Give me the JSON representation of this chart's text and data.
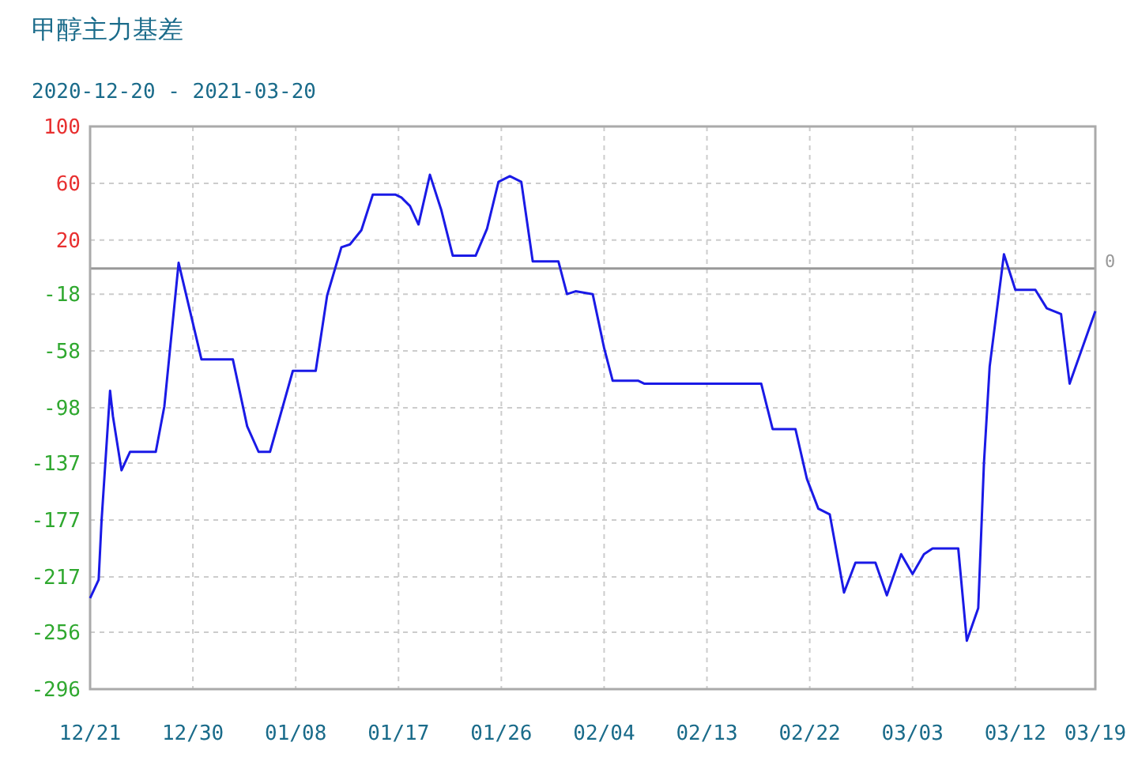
{
  "chart_data": {
    "type": "line",
    "title": "甲醇主力基差",
    "subtitle": "2020-12-20 - 2021-03-20",
    "x": [
      "2020-12-21",
      "2020-12-21T18:00",
      "2020-12-22",
      "2020-12-22T18:00",
      "2020-12-23",
      "2020-12-23T18:00",
      "2020-12-24T12:00",
      "2020-12-26T18:00",
      "2020-12-27T12:00",
      "2020-12-28T18:00",
      "2020-12-30T18:00",
      "2021-01-02T12:00",
      "2021-01-03T18:00",
      "2021-01-04T18:00",
      "2021-01-05T18:00",
      "2021-01-07T18:00",
      "2021-01-09T18:00",
      "2021-01-10T18:00",
      "2021-01-12",
      "2021-01-12T18:00",
      "2021-01-13T18:00",
      "2021-01-14T18:00",
      "2021-01-16T18:00",
      "2021-01-17T06:00",
      "2021-01-18",
      "2021-01-18T18:00",
      "2021-01-19T18:00",
      "2021-01-20T18:00",
      "2021-01-21T18:00",
      "2021-01-23T18:00",
      "2021-01-24T18:00",
      "2021-01-25T18:00",
      "2021-01-26T18:00",
      "2021-01-27T18:00",
      "2021-01-28T18:00",
      "2021-01-31",
      "2021-01-31T18:00",
      "2021-02-01T12:00",
      "2021-02-03",
      "2021-02-04",
      "2021-02-04T18:00",
      "2021-02-07",
      "2021-02-07T12:00",
      "2021-02-17T18:00",
      "2021-02-18T18:00",
      "2021-02-20T18:00",
      "2021-02-21T18:00",
      "2021-02-22T18:00",
      "2021-02-23T18:00",
      "2021-02-25",
      "2021-02-26",
      "2021-02-27T18:00",
      "2021-02-28T18:00",
      "2021-03-02",
      "2021-03-03",
      "2021-03-04",
      "2021-03-04T18:00",
      "2021-03-07",
      "2021-03-07T18:00",
      "2021-03-08T18:00",
      "2021-03-09T06:00",
      "2021-03-09T18:00",
      "2021-03-11",
      "2021-03-12",
      "2021-03-13T18:00",
      "2021-03-14T18:00",
      "2021-03-16",
      "2021-03-16T18:00",
      "2021-03-19"
    ],
    "series": [
      {
        "color": "#1a1ae6",
        "values": [
          -232,
          -219,
          -178,
          -86,
          -104,
          -142,
          -129,
          -129,
          -97,
          4,
          -64,
          -64,
          -111,
          -129,
          -129,
          -72,
          -72,
          -19,
          15,
          17,
          27,
          52,
          52,
          50,
          44,
          31,
          66,
          41,
          9,
          9,
          28,
          61,
          65,
          61,
          5,
          5,
          -18,
          -16,
          -18,
          -56,
          -79,
          -79,
          -81,
          -81,
          -113,
          -113,
          -148,
          -169,
          -173,
          -228,
          -207,
          -207,
          -230,
          -201,
          -215,
          -201,
          -197,
          -197,
          -262,
          -239,
          -137,
          -69,
          10,
          -15,
          -15,
          -28,
          -32,
          -81,
          -30
        ]
      }
    ],
    "xlim": [
      "2020-12-21",
      "2021-03-19"
    ],
    "xticks": [
      {
        "value": "2020-12-21",
        "label": "12/21"
      },
      {
        "value": "2020-12-30",
        "label": "12/30"
      },
      {
        "value": "2021-01-08",
        "label": "01/08"
      },
      {
        "value": "2021-01-17",
        "label": "01/17"
      },
      {
        "value": "2021-01-26",
        "label": "01/26"
      },
      {
        "value": "2021-02-04",
        "label": "02/04"
      },
      {
        "value": "2021-02-13",
        "label": "02/13"
      },
      {
        "value": "2021-02-22",
        "label": "02/22"
      },
      {
        "value": "2021-03-03",
        "label": "03/03"
      },
      {
        "value": "2021-03-12",
        "label": "03/12"
      },
      {
        "value": "2021-03-19",
        "label": "03/19"
      }
    ],
    "ylim": [
      -296,
      100
    ],
    "yticks": [
      -296,
      -256,
      -217,
      -177,
      -137,
      -98,
      -58,
      -18,
      20,
      60,
      100
    ],
    "ref_lines": [
      {
        "axis": "y",
        "value": 0,
        "label": "0",
        "color": "#999999"
      }
    ],
    "grid": true,
    "line_style": "solid",
    "marker": "none"
  }
}
